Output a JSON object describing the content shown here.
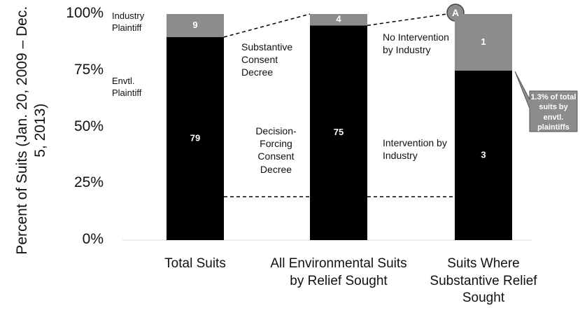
{
  "chart_data": {
    "type": "bar",
    "stacking": "percent",
    "y_label": "Percent of Suits (Jan. 20, 2009 – Dec. 5, 2013)",
    "categories": [
      "Total Suits",
      "All Environmental Suits by Relief Sought",
      "Suits Where Substantive Relief Sought"
    ],
    "series": [
      {
        "color": "#000000",
        "values": [
          79,
          75,
          3
        ]
      },
      {
        "color": "#8c8c8c",
        "values": [
          9,
          4,
          1
        ]
      }
    ],
    "ylim": [
      0,
      100
    ],
    "yticks": [
      {
        "value": 0,
        "label": "0%"
      },
      {
        "value": 25,
        "label": "25%"
      },
      {
        "value": 50,
        "label": "50%"
      },
      {
        "value": 75,
        "label": "75%"
      },
      {
        "value": 100,
        "label": "100%"
      }
    ],
    "annotations": [
      "Industry Plaintiff",
      "Envtl. Plaintiff",
      "Substantive Consent Decree",
      "Decision-Forcing Consent Decree",
      "No Intervention by Industry",
      "Intervention by Industry",
      "A",
      "1.3% of total suits by envtl. plaintiffs"
    ]
  }
}
